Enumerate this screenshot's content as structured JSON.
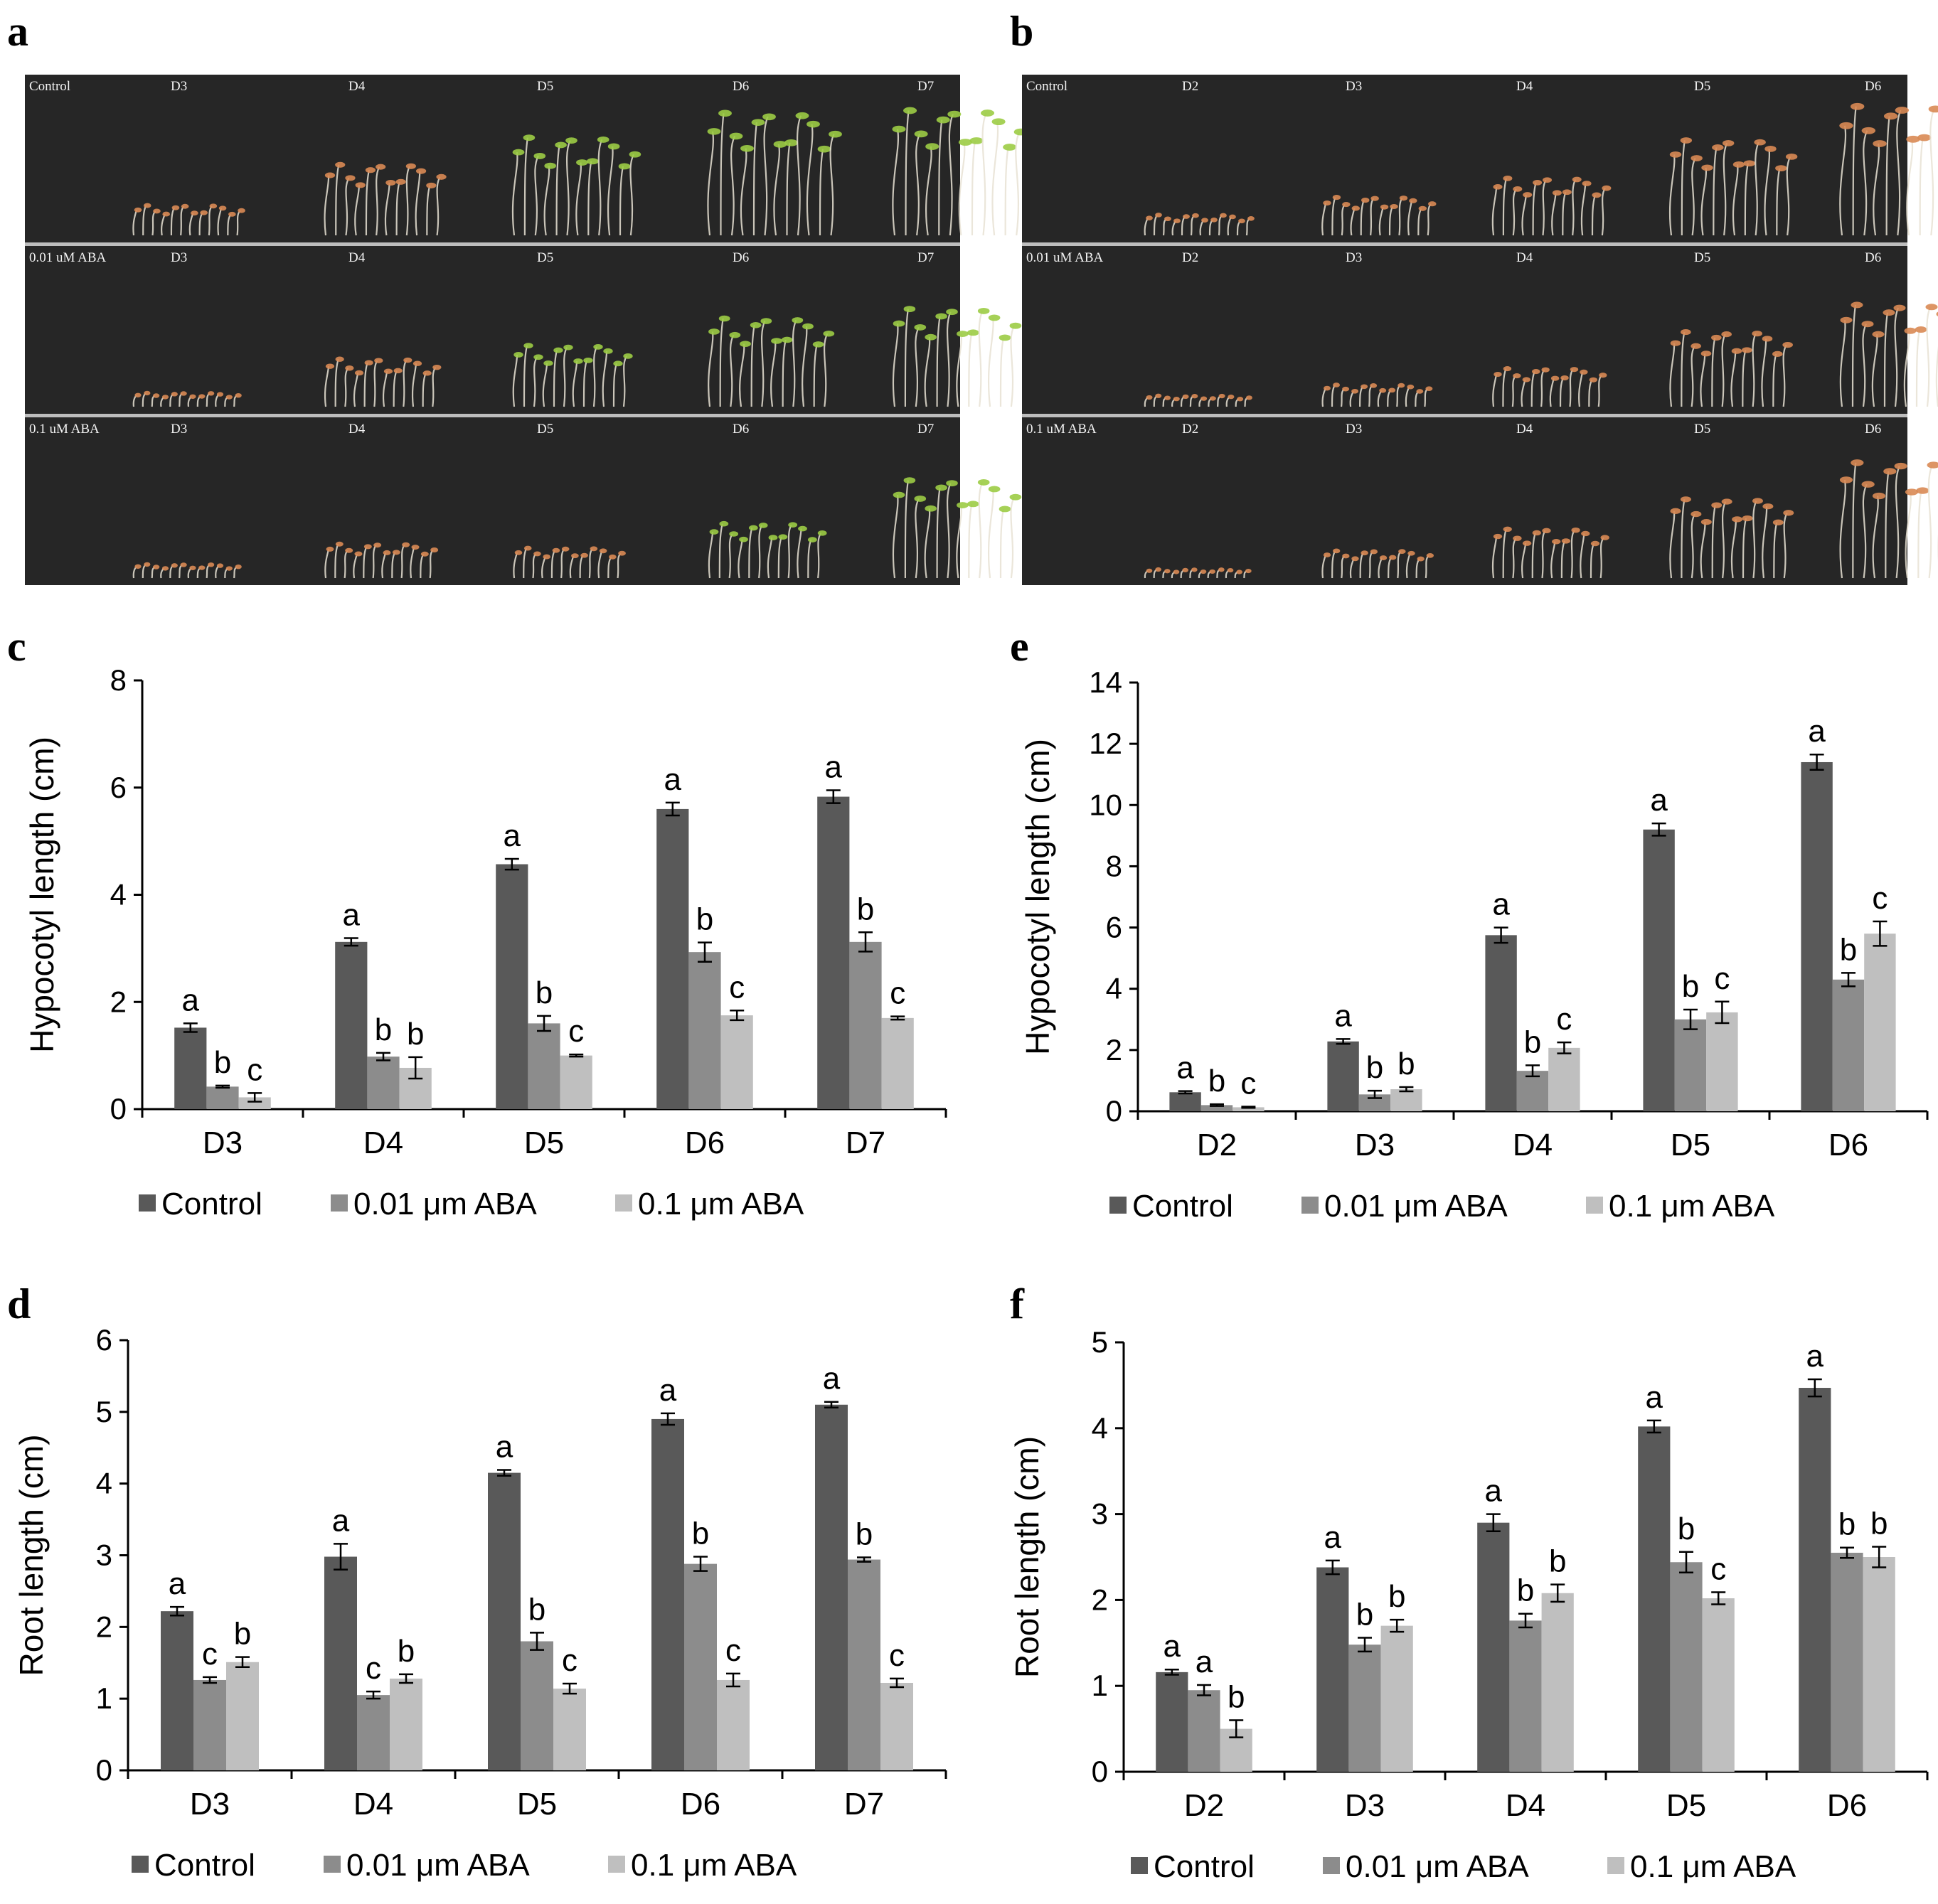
{
  "figure": {
    "panel_labels": [
      "a",
      "b",
      "c",
      "d",
      "e",
      "f"
    ],
    "colors": {
      "control": "#595959",
      "aba_001": "#8c8c8c",
      "aba_01": "#bfbfbf",
      "photo_bg": "#262626",
      "shoot": "#e8e2d4",
      "cotyledon_green": "#9ccc45",
      "cotyledon_orange": "#d98a54"
    }
  },
  "photos": {
    "a": {
      "days": [
        "D3",
        "D4",
        "D5",
        "D6",
        "D7"
      ],
      "rows": [
        {
          "label": "Control",
          "growth": [
            0.22,
            0.52,
            0.72,
            0.9,
            0.92
          ],
          "green": [
            0,
            0.3,
            0.6,
            0.9,
            0.95
          ]
        },
        {
          "label": "0.01 uM ABA",
          "growth": [
            0.1,
            0.35,
            0.45,
            0.65,
            0.72
          ],
          "green": [
            0,
            0.2,
            0.4,
            0.7,
            0.8
          ]
        },
        {
          "label": "0.1 uM ABA",
          "growth": [
            0.1,
            0.25,
            0.22,
            0.4,
            0.72
          ],
          "green": [
            0,
            0.1,
            0.1,
            0.4,
            0.7
          ]
        }
      ]
    },
    "b": {
      "days": [
        "D2",
        "D3",
        "D4",
        "D5",
        "D6"
      ],
      "rows": [
        {
          "label": "Control",
          "growth": [
            0.15,
            0.28,
            0.42,
            0.7,
            0.95
          ],
          "green": [
            0,
            0,
            0.1,
            0.2,
            0.2
          ]
        },
        {
          "label": "0.01 uM ABA",
          "growth": [
            0.08,
            0.16,
            0.28,
            0.55,
            0.75
          ],
          "green": [
            0,
            0,
            0,
            0.1,
            0.1
          ]
        },
        {
          "label": "0.1 uM ABA",
          "growth": [
            0.05,
            0.2,
            0.36,
            0.58,
            0.85
          ],
          "green": [
            0,
            0,
            0,
            0.1,
            0.1
          ]
        }
      ]
    }
  },
  "legend": {
    "control": "Control",
    "aba_001": "0.01 μm ABA",
    "aba_01": "0.1 μm ABA"
  },
  "chart_data": [
    {
      "panel": "c",
      "type": "bar",
      "ylabel": "Hypocotyl length (cm)",
      "xlabel": "",
      "ylim": [
        0,
        8
      ],
      "yticks": [
        0,
        2,
        4,
        6,
        8
      ],
      "categories": [
        "D3",
        "D4",
        "D5",
        "D6",
        "D7"
      ],
      "series": [
        {
          "name": "Control",
          "values": [
            1.52,
            3.12,
            4.57,
            5.6,
            5.83
          ],
          "errors": [
            0.08,
            0.07,
            0.1,
            0.12,
            0.12
          ],
          "letters": [
            "a",
            "a",
            "a",
            "a",
            "a"
          ]
        },
        {
          "name": "0.01 μm ABA",
          "values": [
            0.42,
            0.98,
            1.6,
            2.93,
            3.12
          ],
          "errors": [
            0.02,
            0.07,
            0.14,
            0.18,
            0.18
          ],
          "letters": [
            "b",
            "b",
            "b",
            "b",
            "b"
          ]
        },
        {
          "name": "0.1 μm ABA",
          "values": [
            0.22,
            0.77,
            1.0,
            1.75,
            1.7
          ],
          "errors": [
            0.08,
            0.2,
            0.02,
            0.09,
            0.03
          ],
          "letters": [
            "c",
            "b",
            "c",
            "c",
            "c"
          ]
        }
      ]
    },
    {
      "panel": "d",
      "type": "bar",
      "ylabel": "Root length (cm)",
      "xlabel": "",
      "ylim": [
        0,
        6
      ],
      "yticks": [
        0,
        1,
        2,
        3,
        4,
        5,
        6
      ],
      "categories": [
        "D3",
        "D4",
        "D5",
        "D6",
        "D7"
      ],
      "series": [
        {
          "name": "Control",
          "values": [
            2.22,
            2.98,
            4.15,
            4.9,
            5.1
          ],
          "errors": [
            0.06,
            0.18,
            0.04,
            0.08,
            0.04
          ],
          "letters": [
            "a",
            "a",
            "a",
            "a",
            "a"
          ]
        },
        {
          "name": "0.01 μm ABA",
          "values": [
            1.26,
            1.05,
            1.8,
            2.88,
            2.94
          ],
          "errors": [
            0.04,
            0.05,
            0.12,
            0.1,
            0.03
          ],
          "letters": [
            "c",
            "c",
            "b",
            "b",
            "b"
          ]
        },
        {
          "name": "0.1 μm ABA",
          "values": [
            1.51,
            1.28,
            1.14,
            1.26,
            1.22
          ],
          "errors": [
            0.07,
            0.06,
            0.07,
            0.09,
            0.06
          ],
          "letters": [
            "b",
            "b",
            "c",
            "c",
            "c"
          ]
        }
      ]
    },
    {
      "panel": "e",
      "type": "bar",
      "ylabel": "Hypocotyl length (cm)",
      "xlabel": "",
      "ylim": [
        0,
        14
      ],
      "yticks": [
        0,
        2,
        4,
        6,
        8,
        10,
        12,
        14
      ],
      "categories": [
        "D2",
        "D3",
        "D4",
        "D5",
        "D6"
      ],
      "series": [
        {
          "name": "Control",
          "values": [
            0.62,
            2.28,
            5.75,
            9.2,
            11.4
          ],
          "errors": [
            0.04,
            0.08,
            0.25,
            0.2,
            0.25
          ],
          "letters": [
            "a",
            "a",
            "a",
            "a",
            "a"
          ]
        },
        {
          "name": "0.01 μm ABA",
          "values": [
            0.2,
            0.55,
            1.32,
            3.0,
            4.3
          ],
          "errors": [
            0.03,
            0.12,
            0.18,
            0.32,
            0.22
          ],
          "letters": [
            "b",
            "b",
            "b",
            "b",
            "b"
          ]
        },
        {
          "name": "0.1 μm ABA",
          "values": [
            0.13,
            0.72,
            2.07,
            3.23,
            5.8
          ],
          "errors": [
            0.02,
            0.07,
            0.18,
            0.35,
            0.4
          ],
          "letters": [
            "c",
            "b",
            "c",
            "c",
            "c"
          ]
        }
      ]
    },
    {
      "panel": "f",
      "type": "bar",
      "ylabel": "Root length (cm)",
      "xlabel": "",
      "ylim": [
        0,
        5
      ],
      "yticks": [
        0,
        1,
        2,
        3,
        4,
        5
      ],
      "categories": [
        "D2",
        "D3",
        "D4",
        "D5",
        "D6"
      ],
      "series": [
        {
          "name": "Control",
          "values": [
            1.16,
            2.38,
            2.9,
            4.02,
            4.47
          ],
          "errors": [
            0.03,
            0.08,
            0.1,
            0.07,
            0.1
          ],
          "letters": [
            "a",
            "a",
            "a",
            "a",
            "a"
          ]
        },
        {
          "name": "0.01 μm ABA",
          "values": [
            0.95,
            1.48,
            1.76,
            2.44,
            2.55
          ],
          "errors": [
            0.06,
            0.08,
            0.08,
            0.12,
            0.06
          ],
          "letters": [
            "a",
            "b",
            "b",
            "b",
            "b"
          ]
        },
        {
          "name": "0.1 μm ABA",
          "values": [
            0.5,
            1.7,
            2.08,
            2.02,
            2.5
          ],
          "errors": [
            0.1,
            0.07,
            0.1,
            0.07,
            0.12
          ],
          "letters": [
            "b",
            "b",
            "b",
            "c",
            "b"
          ]
        }
      ]
    }
  ]
}
